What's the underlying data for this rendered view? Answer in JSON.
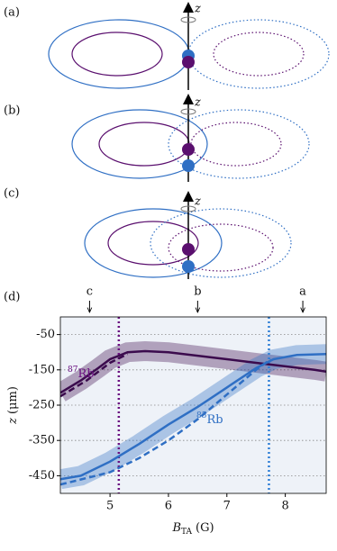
{
  "panels": [
    {
      "label": "(a)",
      "axis_label": "z"
    },
    {
      "label": "(b)",
      "axis_label": "z"
    },
    {
      "label": "(c)",
      "axis_label": "z"
    }
  ],
  "chart_data": {
    "type": "line",
    "panel_label": "(d)",
    "xlabel": {
      "symbol": "B",
      "subscript": "TA",
      "unit": "(G)"
    },
    "ylabel": {
      "symbol": "z",
      "unit": "(μm)"
    },
    "xlim": [
      4.15,
      8.7
    ],
    "xticks": [
      5,
      6,
      7,
      8
    ],
    "ylim": [
      -500,
      0
    ],
    "yticks": [
      -50,
      -150,
      -250,
      -350,
      -450
    ],
    "grid": true,
    "series": [
      {
        "color": "#3b0b4d",
        "style": "solid",
        "x": [
          4.15,
          4.5,
          4.8,
          5.0,
          5.3,
          5.6,
          6.0,
          6.5,
          7.0,
          7.5,
          8.0,
          8.5,
          8.7
        ],
        "values": [
          -215,
          -180,
          -145,
          -120,
          -100,
          -97,
          -100,
          -110,
          -120,
          -130,
          -140,
          -150,
          -155
        ]
      },
      {
        "color": "#3b0b4d",
        "style": "dashed",
        "x": [
          4.15,
          4.6,
          5.0,
          5.3
        ],
        "values": [
          -225,
          -180,
          -130,
          -105
        ]
      },
      {
        "color": "#2f6fc4",
        "style": "solid",
        "x": [
          4.15,
          4.5,
          5.0,
          5.5,
          6.0,
          6.5,
          7.0,
          7.5,
          7.8,
          8.2,
          8.7
        ],
        "values": [
          -460,
          -450,
          -410,
          -360,
          -305,
          -255,
          -200,
          -145,
          -120,
          -108,
          -105
        ]
      },
      {
        "color": "#2f6fc4",
        "style": "dashed",
        "x": [
          4.15,
          5.0,
          5.5,
          6.0,
          6.5,
          7.0,
          7.5,
          7.75
        ],
        "values": [
          -475,
          -440,
          -400,
          -350,
          -290,
          -220,
          -150,
          -120
        ]
      }
    ],
    "vlines": [
      {
        "x": 5.15,
        "color": "#6a0f80"
      },
      {
        "x": 7.72,
        "color": "#2f7fd6"
      }
    ],
    "markers": [
      {
        "label": "c",
        "x": 4.65
      },
      {
        "label": "b",
        "x": 6.5
      },
      {
        "label": "a",
        "x": 8.3
      }
    ],
    "annotations": [
      {
        "mass": "87",
        "text": "Rb",
        "color": "#6a0f80"
      },
      {
        "mass": "85",
        "text": "Rb",
        "color": "#2f6fc4"
      }
    ]
  }
}
